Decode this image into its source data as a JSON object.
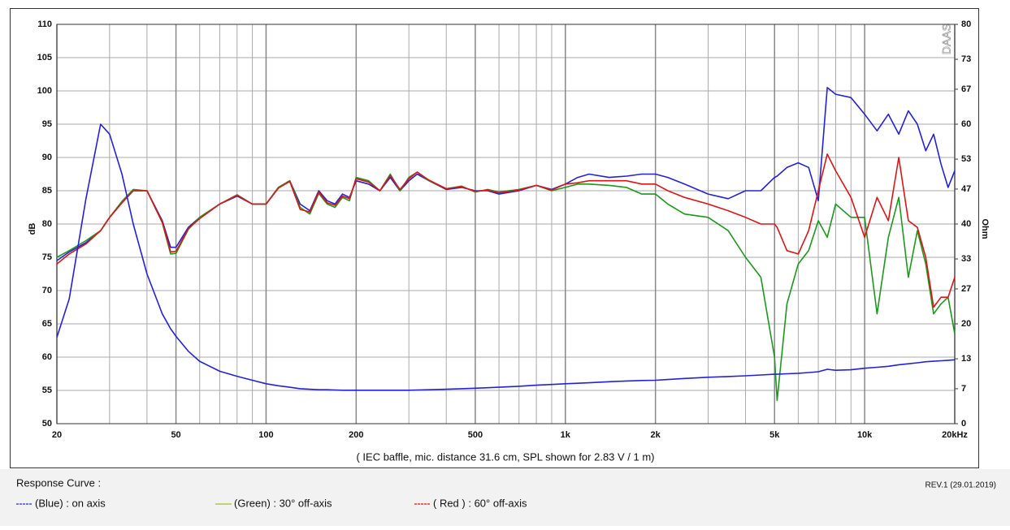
{
  "chart_data": {
    "type": "line",
    "ylabel": "dB",
    "y2label": "Ohm",
    "xlabel": "( IEC baffle, mic. distance 31.6 cm, SPL shown for 2.83 V / 1 m)",
    "watermark": "DAAS",
    "legend_title": "Response Curve :",
    "revision": "REV.1 (29.01.2019)",
    "xscale": "log",
    "grid": true,
    "xlim": [
      20,
      20000
    ],
    "xticks": [
      20,
      50,
      100,
      200,
      500,
      {
        "value": 1000,
        "label": "1k"
      },
      {
        "value": 2000,
        "label": "2k"
      },
      {
        "value": 5000,
        "label": "5k"
      },
      {
        "value": 10000,
        "label": "10k"
      },
      {
        "value": 20000,
        "label": "20kHz"
      }
    ],
    "xminor_ticks": [
      30,
      40,
      60,
      70,
      80,
      90,
      300,
      400,
      600,
      700,
      800,
      900,
      3000,
      4000,
      6000,
      7000,
      8000,
      9000
    ],
    "ylim": [
      50,
      110
    ],
    "yticks": [
      50,
      55,
      60,
      65,
      70,
      75,
      80,
      85,
      90,
      95,
      100,
      105,
      110
    ],
    "y2lim": [
      0,
      80
    ],
    "y2ticks": [
      0,
      7,
      13,
      20,
      27,
      33,
      40,
      47,
      53,
      60,
      67,
      73,
      80
    ],
    "x": [
      20,
      22,
      25,
      28,
      30,
      33,
      36,
      40,
      45,
      48,
      50,
      55,
      60,
      70,
      80,
      90,
      100,
      110,
      120,
      130,
      140,
      150,
      160,
      170,
      180,
      190,
      200,
      220,
      240,
      260,
      280,
      300,
      320,
      350,
      400,
      450,
      500,
      550,
      600,
      700,
      800,
      900,
      1000,
      1100,
      1200,
      1400,
      1600,
      1800,
      2000,
      2200,
      2500,
      3000,
      3500,
      4000,
      4500,
      5000,
      5100,
      5500,
      6000,
      6500,
      7000,
      7500,
      8000,
      9000,
      10000,
      11000,
      12000,
      13000,
      14000,
      15000,
      16000,
      17000,
      18000,
      19000,
      20000
    ],
    "series": [
      {
        "name": "(Blue)  : on axis",
        "color": "#2222dd",
        "legend_color": "#2a2ae0",
        "values": [
          74.5,
          75.8,
          77.2,
          79,
          81,
          83.2,
          85,
          85,
          80.5,
          76.5,
          76.5,
          79.5,
          81,
          83,
          84.2,
          83,
          83,
          85.5,
          86.5,
          83,
          82,
          85,
          83.5,
          83,
          84.5,
          84,
          86.5,
          86,
          85,
          87,
          85,
          86.5,
          87.5,
          86.5,
          85.2,
          85.5,
          85,
          85,
          84.5,
          85,
          85.8,
          85.2,
          86,
          87,
          87.5,
          87,
          87.2,
          87.5,
          87.5,
          87,
          86,
          84.5,
          83.8,
          85,
          85,
          87,
          87.2,
          88.5,
          89.2,
          88.5,
          83.5,
          100.5,
          99.5,
          99,
          96.5,
          94,
          96.5,
          93.5,
          97,
          95,
          91,
          93.5,
          89,
          85.5,
          88
        ]
      },
      {
        "name": "(Green) : 30° off-axis",
        "color": "#1a9a1a",
        "legend_color": "#a0c020",
        "values": [
          75,
          76,
          77.5,
          79,
          81,
          83.4,
          85.2,
          85,
          80.2,
          75.5,
          75.6,
          79.2,
          81,
          83,
          84.4,
          83,
          83,
          85.5,
          86.5,
          82.5,
          81.5,
          84.6,
          83,
          82.5,
          84,
          83.5,
          87,
          86.5,
          85,
          87.5,
          85,
          87,
          87.8,
          86.5,
          85.3,
          85.7,
          84.8,
          85.2,
          84.8,
          85.2,
          85.8,
          85,
          85.5,
          86,
          86,
          85.8,
          85.5,
          84.5,
          84.5,
          83,
          81.5,
          81,
          79,
          75,
          72,
          60,
          53.5,
          68,
          74,
          76,
          80.5,
          78,
          83,
          81,
          81,
          66.5,
          78,
          84,
          72,
          79,
          74,
          66.5,
          68,
          69,
          63.5
        ]
      },
      {
        "name": "( Red ) : 60° off-axis",
        "color": "#e01414",
        "legend_color": "#e01414",
        "values": [
          74,
          75.5,
          77,
          79,
          81,
          83.2,
          85,
          85,
          80.3,
          75.8,
          75.9,
          79.3,
          80.8,
          83,
          84.3,
          83,
          83,
          85.4,
          86.4,
          82.2,
          81.8,
          84.8,
          83.2,
          82.8,
          84.2,
          83.8,
          86.8,
          86.3,
          85,
          87.3,
          85.2,
          86.8,
          87.8,
          86.6,
          85.3,
          85.6,
          84.9,
          85.1,
          84.7,
          85.1,
          85.8,
          85.1,
          86,
          86.2,
          86.5,
          86.5,
          86.5,
          86,
          86,
          85,
          84,
          83,
          82,
          81,
          80,
          80,
          79.5,
          76,
          75.5,
          79,
          85,
          90.5,
          88,
          84,
          78,
          84,
          80.5,
          90,
          80.5,
          79.5,
          75,
          67.5,
          69,
          69,
          72
        ]
      },
      {
        "color": "#2222dd",
        "axis": "y2",
        "values": [
          17.3,
          25,
          45,
          60,
          58,
          50,
          40,
          30,
          22,
          19,
          17.5,
          14.5,
          12.5,
          10.5,
          9.5,
          8.7,
          8,
          7.6,
          7.3,
          7,
          6.9,
          6.8,
          6.8,
          6.75,
          6.7,
          6.7,
          6.7,
          6.7,
          6.7,
          6.7,
          6.7,
          6.7,
          6.75,
          6.8,
          6.9,
          7,
          7.1,
          7.2,
          7.3,
          7.5,
          7.7,
          7.85,
          8,
          8.1,
          8.2,
          8.4,
          8.55,
          8.65,
          8.7,
          8.85,
          9.05,
          9.3,
          9.45,
          9.6,
          9.75,
          9.9,
          9.9,
          10,
          10.1,
          10.25,
          10.4,
          10.9,
          10.7,
          10.8,
          11.1,
          11.3,
          11.5,
          11.8,
          12,
          12.2,
          12.4,
          12.5,
          12.6,
          12.7,
          12.8
        ]
      }
    ]
  }
}
